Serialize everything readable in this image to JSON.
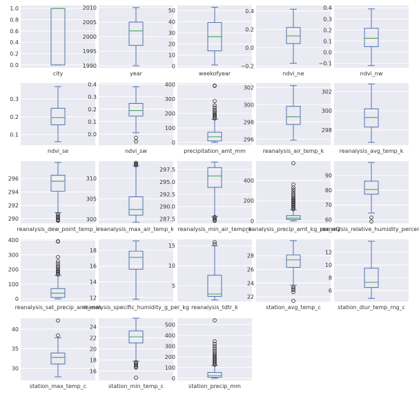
{
  "chart_data": {
    "type": "box",
    "layout": {
      "rows": 5,
      "cols": 5
    },
    "colors": {
      "box": "#4c72b0",
      "median": "#55a868",
      "panel_bg": "#eaeaf2",
      "grid": "#ffffff"
    },
    "grid": true,
    "panels": [
      {
        "xlabel": "city",
        "ylim": [
          -0.05,
          1.05
        ],
        "yticks": [
          "0.0",
          "0.2",
          "0.4",
          "0.6",
          "0.8",
          "1.0"
        ],
        "ytick_values": [
          0,
          0.2,
          0.4,
          0.6,
          0.8,
          1.0
        ],
        "whislo": 0,
        "q1": 0,
        "med": 1,
        "q3": 1,
        "whishi": 1,
        "fliers": []
      },
      {
        "xlabel": "year",
        "ylim": [
          1989.3,
          2010.7
        ],
        "yticks": [
          "1990",
          "1995",
          "2000",
          "2005",
          "2010"
        ],
        "ytick_values": [
          1990,
          1995,
          2000,
          2005,
          2010
        ],
        "whislo": 1990,
        "q1": 1997,
        "med": 2002,
        "q3": 2005,
        "whishi": 2010,
        "fliers": []
      },
      {
        "xlabel": "weekofyear",
        "ylim": [
          -1.5,
          54.5
        ],
        "yticks": [
          "0",
          "10",
          "20",
          "30",
          "40",
          "50"
        ],
        "ytick_values": [
          0,
          10,
          20,
          30,
          40,
          50
        ],
        "whislo": 1,
        "q1": 13.75,
        "med": 26.5,
        "q3": 39.25,
        "whishi": 53,
        "fliers": []
      },
      {
        "xlabel": "ndvi_ne",
        "ylim": [
          -0.22,
          0.46
        ],
        "yticks": [
          "−0.2",
          "0.0",
          "0.2",
          "0.4"
        ],
        "ytick_values": [
          -0.2,
          0,
          0.2,
          0.4
        ],
        "whislo": -0.17,
        "q1": 0.045,
        "med": 0.128,
        "q3": 0.22,
        "whishi": 0.42,
        "fliers": []
      },
      {
        "xlabel": "ndvi_nw",
        "ylim": [
          -0.14,
          0.42
        ],
        "yticks": [
          "−0.1",
          "0.0",
          "0.1",
          "0.2",
          "0.3",
          "0.4"
        ],
        "ytick_values": [
          -0.1,
          0,
          0.1,
          0.2,
          0.3,
          0.4
        ],
        "whislo": -0.12,
        "q1": 0.05,
        "med": 0.125,
        "q3": 0.215,
        "whishi": 0.39,
        "fliers": []
      },
      {
        "xlabel": "ndvi_se",
        "ylim": [
          0.04,
          0.39
        ],
        "yticks": [
          "0.1",
          "0.2",
          "0.3"
        ],
        "ytick_values": [
          0.1,
          0.2,
          0.3
        ],
        "whislo": 0.06,
        "q1": 0.155,
        "med": 0.196,
        "q3": 0.248,
        "whishi": 0.37,
        "fliers": []
      },
      {
        "xlabel": "ndvi_sw",
        "ylim": [
          -0.09,
          0.41
        ],
        "yticks": [
          "0.0",
          "0.1",
          "0.2",
          "0.3",
          "0.4"
        ],
        "ytick_values": [
          0,
          0.1,
          0.2,
          0.3,
          0.4
        ],
        "whislo": 0.01,
        "q1": 0.144,
        "med": 0.19,
        "q3": 0.246,
        "whishi": 0.38,
        "fliers": [
          -0.03,
          -0.06
        ]
      },
      {
        "xlabel": "precipitation_amt_mm",
        "ylim": [
          -20,
          410
        ],
        "yticks": [
          "0",
          "100",
          "200",
          "300",
          "400"
        ],
        "ytick_values": [
          0,
          100,
          200,
          300,
          400
        ],
        "whislo": 0,
        "q1": 9.8,
        "med": 38.3,
        "q3": 70.2,
        "whishi": 160,
        "fliers": [
          165,
          172,
          180,
          188,
          195,
          205,
          215,
          225,
          240,
          255,
          285,
          390,
          392
        ]
      },
      {
        "xlabel": "reanalysis_air_temp_k",
        "ylim": [
          295.3,
          302.5
        ],
        "yticks": [
          "296",
          "298",
          "300",
          "302"
        ],
        "ytick_values": [
          296,
          298,
          300,
          302
        ],
        "whislo": 295.9,
        "q1": 297.7,
        "med": 298.6,
        "q3": 299.8,
        "whishi": 302.2,
        "fliers": []
      },
      {
        "xlabel": "reanalysis_avg_temp_k",
        "ylim": [
          296.4,
          302.9
        ],
        "yticks": [
          "298",
          "300",
          "302"
        ],
        "ytick_values": [
          298,
          300,
          302
        ],
        "whislo": 296.7,
        "q1": 298.3,
        "med": 299.3,
        "q3": 300.2,
        "whishi": 302.8,
        "fliers": []
      },
      {
        "xlabel": "reanalysis_dew_point_temp_k",
        "ylim": [
          289.3,
          298.6
        ],
        "yticks": [
          "290",
          "292",
          "294",
          "296"
        ],
        "ytick_values": [
          290,
          292,
          294,
          296
        ],
        "whislo": 290.9,
        "q1": 294.1,
        "med": 295.6,
        "q3": 296.5,
        "whishi": 298.4,
        "fliers": [
          290.7,
          290.5,
          290.3,
          290.1,
          289.9,
          289.8,
          289.7
        ]
      },
      {
        "xlabel": "reanalysis_max_air_temp_k",
        "ylim": [
          299.0,
          314.2
        ],
        "yticks": [
          "300",
          "305",
          "310"
        ],
        "ytick_values": [
          300,
          305,
          310
        ],
        "whislo": 299.3,
        "q1": 301.0,
        "med": 302.4,
        "q3": 305.5,
        "whishi": 313.0,
        "fliers": [
          313.2,
          313.4,
          313.6,
          313.8
        ]
      },
      {
        "xlabel": "reanalysis_min_air_temp_k",
        "ylim": [
          286.6,
          299.2
        ],
        "yticks": [
          "287.5",
          "290.0",
          "292.5",
          "295.0",
          "297.5"
        ],
        "ytick_values": [
          287.5,
          290,
          292.5,
          295,
          297.5
        ],
        "whislo": 288.0,
        "q1": 293.9,
        "med": 296.2,
        "q3": 297.9,
        "whishi": 299.0,
        "fliers": [
          287.9,
          287.7,
          287.5,
          287.3,
          287.1
        ]
      },
      {
        "xlabel": "reanalysis_precip_amt_kg_per_m2",
        "ylim": [
          -25,
          590
        ],
        "yticks": [
          "0",
          "200",
          "400"
        ],
        "ytick_values": [
          0,
          200,
          400
        ],
        "whislo": 0,
        "q1": 13.1,
        "med": 27.2,
        "q3": 52.2,
        "whishi": 110,
        "fliers": [
          115,
          125,
          135,
          145,
          155,
          165,
          175,
          185,
          195,
          205,
          215,
          225,
          240,
          255,
          270,
          290,
          310,
          330,
          360,
          570
        ]
      },
      {
        "xlabel": "reanalysis_relative_humidity_percent",
        "ylim": [
          57.5,
          99.5
        ],
        "yticks": [
          "60",
          "70",
          "80",
          "90"
        ],
        "ytick_values": [
          60,
          70,
          80,
          90
        ],
        "whislo": 64.5,
        "q1": 77.2,
        "med": 80.3,
        "q3": 86.0,
        "whishi": 98.6,
        "fliers": [
          61.5,
          58.8
        ]
      },
      {
        "xlabel": "reanalysis_sat_precip_amt_mm",
        "ylim": [
          -18,
          405
        ],
        "yticks": [
          "0",
          "100",
          "200",
          "300",
          "400"
        ],
        "ytick_values": [
          0,
          100,
          200,
          300,
          400
        ],
        "whislo": 0,
        "q1": 9.8,
        "med": 38.3,
        "q3": 70.2,
        "whishi": 160,
        "fliers": [
          165,
          172,
          180,
          188,
          195,
          205,
          215,
          225,
          240,
          255,
          285,
          390,
          392
        ]
      },
      {
        "xlabel": "reanalysis_specific_humidity_g_per_kg",
        "ylim": [
          11.5,
          19.4
        ],
        "yticks": [
          "12",
          "14",
          "16",
          "18"
        ],
        "ytick_values": [
          12,
          14,
          16,
          18
        ],
        "whislo": 11.8,
        "q1": 15.6,
        "med": 17.1,
        "q3": 17.9,
        "whishi": 19.2,
        "fliers": []
      },
      {
        "xlabel": "reanalysis_tdtr_k",
        "ylim": [
          1.0,
          16.6
        ],
        "yticks": [
          "5",
          "10",
          "15"
        ],
        "ytick_values": [
          5,
          10,
          15
        ],
        "whislo": 1.4,
        "q1": 2.3,
        "med": 2.9,
        "q3": 7.6,
        "whishi": 15.0,
        "fliers": [
          15.4,
          15.9
        ]
      },
      {
        "xlabel": "station_avg_temp_c",
        "ylim": [
          21.3,
          30.4
        ],
        "yticks": [
          "22",
          "24",
          "26",
          "28"
        ],
        "ytick_values": [
          22,
          24,
          26,
          28
        ],
        "whislo": 23.7,
        "q1": 26.3,
        "med": 27.4,
        "q3": 28.1,
        "whishi": 30.2,
        "fliers": [
          23.4,
          23.2,
          23.0,
          22.7,
          21.4
        ]
      },
      {
        "xlabel": "station_diur_temp_rng_c",
        "ylim": [
          4.3,
          14.0
        ],
        "yticks": [
          "6",
          "8",
          "10",
          "12"
        ],
        "ytick_values": [
          6,
          8,
          10,
          12
        ],
        "whislo": 4.8,
        "q1": 6.5,
        "med": 7.3,
        "q3": 9.5,
        "whishi": 13.7,
        "fliers": []
      },
      {
        "xlabel": "station_max_temp_c",
        "ylim": [
          26.9,
          42.8
        ],
        "yticks": [
          "30",
          "35",
          "40"
        ],
        "ytick_values": [
          30,
          35,
          40
        ],
        "whislo": 27.8,
        "q1": 31.1,
        "med": 32.8,
        "q3": 33.9,
        "whishi": 37.8,
        "fliers": [
          38.4,
          42.2
        ]
      },
      {
        "xlabel": "station_min_temp_c",
        "ylim": [
          14.3,
          25.6
        ],
        "yticks": [
          "16",
          "18",
          "20",
          "22",
          "24"
        ],
        "ytick_values": [
          16,
          18,
          20,
          22,
          24
        ],
        "whislo": 17.8,
        "q1": 21.1,
        "med": 22.2,
        "q3": 23.3,
        "whishi": 25.6,
        "fliers": [
          17.6,
          17.4,
          17.2,
          17.0,
          16.8,
          16.6,
          14.8
        ]
      },
      {
        "xlabel": "station_precip_mm",
        "ylim": [
          -20,
          560
        ],
        "yticks": [
          "0",
          "100",
          "200",
          "300",
          "400",
          "500"
        ],
        "ytick_values": [
          0,
          100,
          200,
          300,
          400,
          500
        ],
        "whislo": 0,
        "q1": 8.7,
        "med": 23.9,
        "q3": 53.9,
        "whishi": 120,
        "fliers": [
          125,
          135,
          145,
          155,
          165,
          175,
          185,
          195,
          205,
          215,
          230,
          245,
          260,
          280,
          300,
          320,
          345,
          540
        ]
      }
    ]
  }
}
